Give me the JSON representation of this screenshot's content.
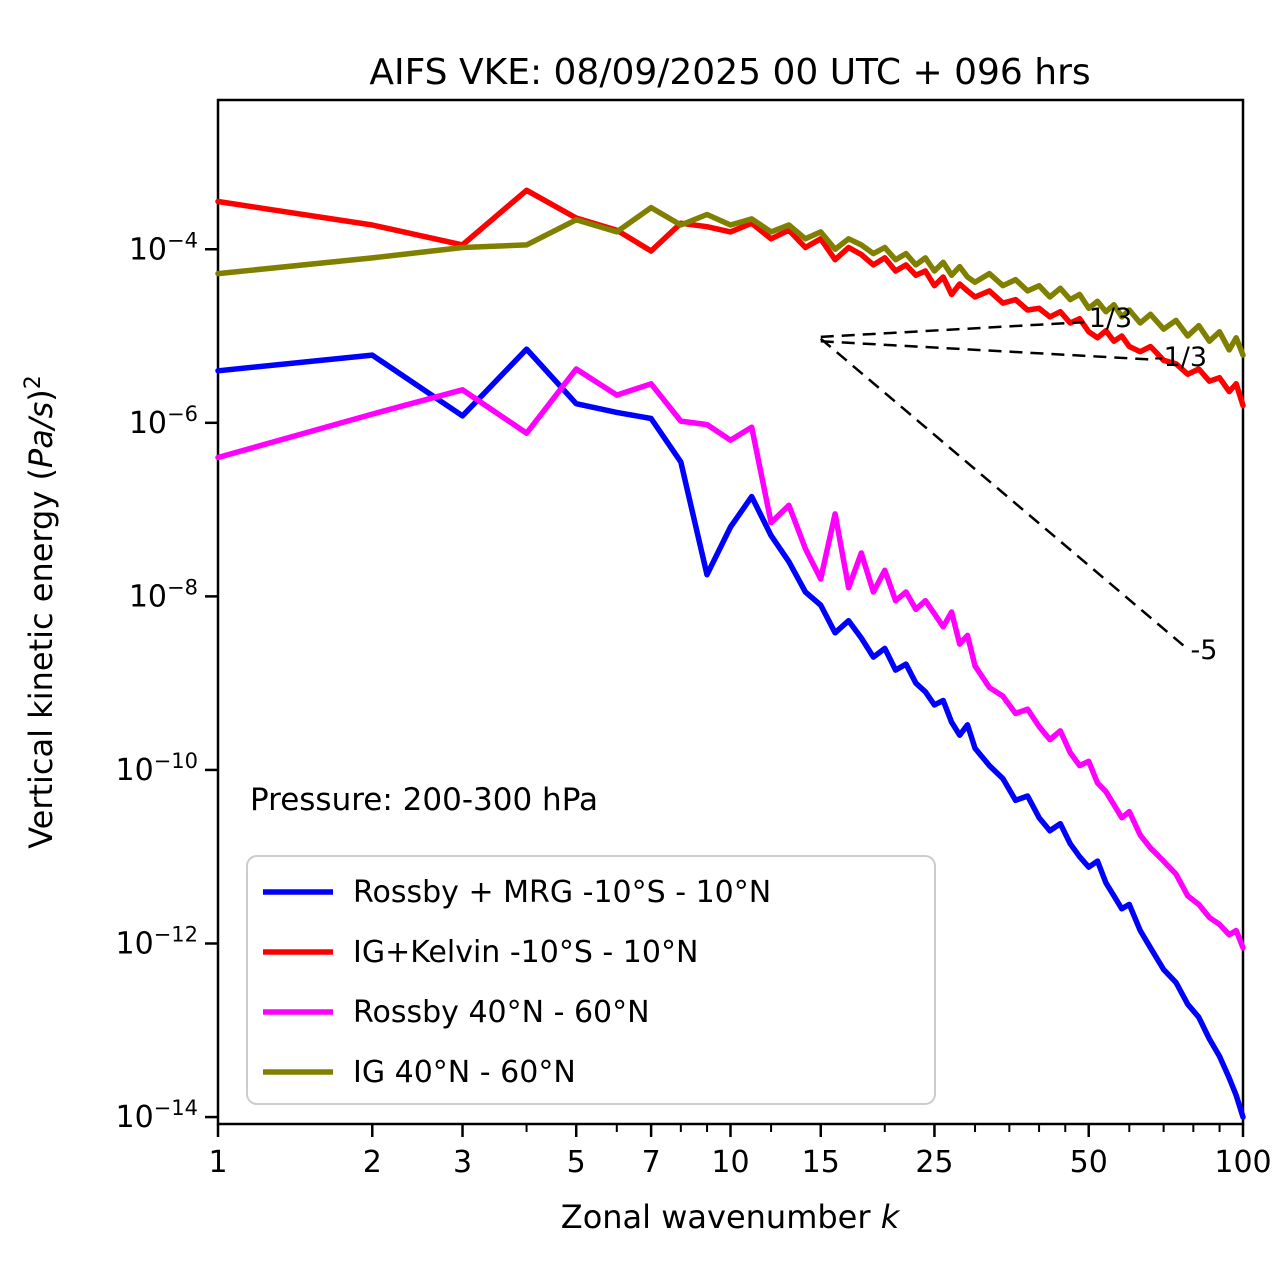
{
  "title": "AIFS VKE: 08/09/2025 00 UTC + 096 hrs",
  "chart_data": {
    "type": "line",
    "title": "AIFS VKE: 08/09/2025 00 UTC + 096 hrs",
    "xlabel_prefix": "Zonal wavenumber ",
    "xlabel_italic": "k",
    "ylabel_prefix": "Vertical kinetic energy (",
    "ylabel_italic": "Pa/s",
    "ylabel_suffix": ")",
    "ylabel_exponent": "2",
    "annotation": "Pressure: 200-300 hPa",
    "x_scale": "log",
    "y_scale": "log",
    "xlim": [
      1,
      100
    ],
    "ylim_log10": [
      -14.08,
      -2.28
    ],
    "grid": false,
    "legend_position": "lower-left",
    "x_ticks": [
      1,
      2,
      3,
      5,
      7,
      10,
      15,
      25,
      50,
      100
    ],
    "x_minor_ticks": [
      4,
      6,
      8,
      9,
      12,
      20,
      30,
      35,
      40,
      45,
      60,
      70,
      80,
      90
    ],
    "y_tick_exponents": [
      -4,
      -6,
      -8,
      -10,
      -12,
      -14
    ],
    "y_tick_mantissa": "10",
    "series": [
      {
        "name": "Rossby + MRG -10°S - 10°N",
        "color": "#0000ff",
        "points_k_log10E": [
          [
            1,
            -5.4
          ],
          [
            2,
            -5.22
          ],
          [
            3,
            -5.92
          ],
          [
            4,
            -5.15
          ],
          [
            5,
            -5.78
          ],
          [
            6,
            -5.88
          ],
          [
            7,
            -5.95
          ],
          [
            8,
            -6.45
          ],
          [
            9,
            -7.75
          ],
          [
            10,
            -7.2
          ],
          [
            11,
            -6.85
          ],
          [
            12,
            -7.3
          ],
          [
            13,
            -7.6
          ],
          [
            14,
            -7.95
          ],
          [
            15,
            -8.1
          ],
          [
            16,
            -8.42
          ],
          [
            17,
            -8.28
          ],
          [
            18,
            -8.48
          ],
          [
            19,
            -8.7
          ],
          [
            20,
            -8.6
          ],
          [
            21,
            -8.85
          ],
          [
            22,
            -8.78
          ],
          [
            23,
            -9.0
          ],
          [
            24,
            -9.1
          ],
          [
            25,
            -9.25
          ],
          [
            26,
            -9.2
          ],
          [
            27,
            -9.45
          ],
          [
            28,
            -9.6
          ],
          [
            29,
            -9.48
          ],
          [
            30,
            -9.75
          ],
          [
            32,
            -9.95
          ],
          [
            34,
            -10.1
          ],
          [
            36,
            -10.35
          ],
          [
            38,
            -10.3
          ],
          [
            40,
            -10.55
          ],
          [
            42,
            -10.7
          ],
          [
            44,
            -10.62
          ],
          [
            46,
            -10.85
          ],
          [
            48,
            -11.0
          ],
          [
            50,
            -11.12
          ],
          [
            52,
            -11.05
          ],
          [
            54,
            -11.3
          ],
          [
            56,
            -11.45
          ],
          [
            58,
            -11.6
          ],
          [
            60,
            -11.55
          ],
          [
            63,
            -11.85
          ],
          [
            66,
            -12.05
          ],
          [
            70,
            -12.3
          ],
          [
            74,
            -12.45
          ],
          [
            78,
            -12.7
          ],
          [
            82,
            -12.85
          ],
          [
            86,
            -13.1
          ],
          [
            90,
            -13.3
          ],
          [
            94,
            -13.55
          ],
          [
            97,
            -13.75
          ],
          [
            100,
            -14.0
          ]
        ]
      },
      {
        "name": "IG+Kelvin -10°S - 10°N",
        "color": "#ff0000",
        "points_k_log10E": [
          [
            1,
            -3.45
          ],
          [
            2,
            -3.72
          ],
          [
            3,
            -3.95
          ],
          [
            4,
            -3.32
          ],
          [
            5,
            -3.64
          ],
          [
            6,
            -3.78
          ],
          [
            7,
            -4.02
          ],
          [
            8,
            -3.7
          ],
          [
            9,
            -3.74
          ],
          [
            10,
            -3.8
          ],
          [
            11,
            -3.7
          ],
          [
            12,
            -3.88
          ],
          [
            13,
            -3.78
          ],
          [
            14,
            -3.98
          ],
          [
            15,
            -3.88
          ],
          [
            16,
            -4.12
          ],
          [
            17,
            -3.98
          ],
          [
            18,
            -4.06
          ],
          [
            19,
            -4.18
          ],
          [
            20,
            -4.1
          ],
          [
            21,
            -4.25
          ],
          [
            22,
            -4.18
          ],
          [
            23,
            -4.3
          ],
          [
            24,
            -4.25
          ],
          [
            25,
            -4.42
          ],
          [
            26,
            -4.32
          ],
          [
            27,
            -4.52
          ],
          [
            28,
            -4.4
          ],
          [
            29,
            -4.48
          ],
          [
            30,
            -4.55
          ],
          [
            32,
            -4.48
          ],
          [
            34,
            -4.62
          ],
          [
            36,
            -4.58
          ],
          [
            38,
            -4.7
          ],
          [
            40,
            -4.68
          ],
          [
            42,
            -4.78
          ],
          [
            44,
            -4.72
          ],
          [
            46,
            -4.85
          ],
          [
            48,
            -4.8
          ],
          [
            50,
            -4.95
          ],
          [
            52,
            -5.02
          ],
          [
            54,
            -4.94
          ],
          [
            56,
            -5.06
          ],
          [
            58,
            -5.0
          ],
          [
            60,
            -5.12
          ],
          [
            63,
            -5.18
          ],
          [
            66,
            -5.12
          ],
          [
            70,
            -5.28
          ],
          [
            74,
            -5.32
          ],
          [
            78,
            -5.44
          ],
          [
            82,
            -5.38
          ],
          [
            86,
            -5.52
          ],
          [
            90,
            -5.48
          ],
          [
            94,
            -5.64
          ],
          [
            97,
            -5.55
          ],
          [
            100,
            -5.8
          ]
        ]
      },
      {
        "name": "Rossby 40°N - 60°N",
        "color": "#ff00ff",
        "points_k_log10E": [
          [
            1,
            -6.4
          ],
          [
            2,
            -5.9
          ],
          [
            3,
            -5.62
          ],
          [
            4,
            -6.12
          ],
          [
            5,
            -5.38
          ],
          [
            6,
            -5.68
          ],
          [
            7,
            -5.55
          ],
          [
            8,
            -5.98
          ],
          [
            9,
            -6.02
          ],
          [
            10,
            -6.2
          ],
          [
            11,
            -6.05
          ],
          [
            12,
            -7.15
          ],
          [
            13,
            -6.95
          ],
          [
            14,
            -7.45
          ],
          [
            15,
            -7.8
          ],
          [
            16,
            -7.05
          ],
          [
            17,
            -7.9
          ],
          [
            18,
            -7.5
          ],
          [
            19,
            -7.95
          ],
          [
            20,
            -7.7
          ],
          [
            21,
            -8.05
          ],
          [
            22,
            -7.95
          ],
          [
            23,
            -8.15
          ],
          [
            24,
            -8.05
          ],
          [
            25,
            -8.2
          ],
          [
            26,
            -8.35
          ],
          [
            27,
            -8.18
          ],
          [
            28,
            -8.55
          ],
          [
            29,
            -8.45
          ],
          [
            30,
            -8.8
          ],
          [
            32,
            -9.05
          ],
          [
            34,
            -9.15
          ],
          [
            36,
            -9.35
          ],
          [
            38,
            -9.3
          ],
          [
            40,
            -9.5
          ],
          [
            42,
            -9.65
          ],
          [
            44,
            -9.55
          ],
          [
            46,
            -9.8
          ],
          [
            48,
            -9.95
          ],
          [
            50,
            -9.9
          ],
          [
            52,
            -10.15
          ],
          [
            54,
            -10.25
          ],
          [
            56,
            -10.4
          ],
          [
            58,
            -10.55
          ],
          [
            60,
            -10.48
          ],
          [
            63,
            -10.75
          ],
          [
            66,
            -10.9
          ],
          [
            70,
            -11.05
          ],
          [
            74,
            -11.2
          ],
          [
            78,
            -11.45
          ],
          [
            82,
            -11.55
          ],
          [
            86,
            -11.7
          ],
          [
            90,
            -11.78
          ],
          [
            94,
            -11.9
          ],
          [
            97,
            -11.85
          ],
          [
            100,
            -12.05
          ]
        ]
      },
      {
        "name": "IG 40°N - 60°N",
        "color": "#808000",
        "points_k_log10E": [
          [
            1,
            -4.28
          ],
          [
            2,
            -4.1
          ],
          [
            3,
            -3.98
          ],
          [
            4,
            -3.95
          ],
          [
            5,
            -3.66
          ],
          [
            6,
            -3.8
          ],
          [
            7,
            -3.52
          ],
          [
            8,
            -3.72
          ],
          [
            9,
            -3.6
          ],
          [
            10,
            -3.72
          ],
          [
            11,
            -3.65
          ],
          [
            12,
            -3.8
          ],
          [
            13,
            -3.72
          ],
          [
            14,
            -3.88
          ],
          [
            15,
            -3.8
          ],
          [
            16,
            -4.0
          ],
          [
            17,
            -3.88
          ],
          [
            18,
            -3.95
          ],
          [
            19,
            -4.05
          ],
          [
            20,
            -3.98
          ],
          [
            21,
            -4.12
          ],
          [
            22,
            -4.05
          ],
          [
            23,
            -4.18
          ],
          [
            24,
            -4.1
          ],
          [
            25,
            -4.25
          ],
          [
            26,
            -4.15
          ],
          [
            27,
            -4.3
          ],
          [
            28,
            -4.2
          ],
          [
            29,
            -4.32
          ],
          [
            30,
            -4.38
          ],
          [
            32,
            -4.28
          ],
          [
            34,
            -4.42
          ],
          [
            36,
            -4.35
          ],
          [
            38,
            -4.48
          ],
          [
            40,
            -4.42
          ],
          [
            42,
            -4.55
          ],
          [
            44,
            -4.45
          ],
          [
            46,
            -4.58
          ],
          [
            48,
            -4.52
          ],
          [
            50,
            -4.68
          ],
          [
            52,
            -4.6
          ],
          [
            54,
            -4.72
          ],
          [
            56,
            -4.64
          ],
          [
            58,
            -4.78
          ],
          [
            60,
            -4.7
          ],
          [
            63,
            -4.85
          ],
          [
            66,
            -4.75
          ],
          [
            70,
            -4.92
          ],
          [
            74,
            -4.82
          ],
          [
            78,
            -5.0
          ],
          [
            82,
            -4.88
          ],
          [
            86,
            -5.06
          ],
          [
            90,
            -4.95
          ],
          [
            94,
            -5.16
          ],
          [
            97,
            -5.02
          ],
          [
            100,
            -5.22
          ]
        ]
      }
    ],
    "reference_lines": [
      {
        "label": "1/3",
        "from_k_log10E": [
          15,
          -5.01
        ],
        "to_k_log10E": [
          49,
          -4.84
        ],
        "label_at_k_log10E": [
          50,
          -4.79
        ]
      },
      {
        "label": "-1/3",
        "from_k_log10E": [
          15,
          -5.06
        ],
        "to_k_log10E": [
          66,
          -5.27
        ],
        "label_at_k_log10E": [
          67,
          -5.24
        ]
      },
      {
        "label": "-5",
        "from_k_log10E": [
          15,
          -5.03
        ],
        "to_k_log10E": [
          77,
          -8.58
        ],
        "label_at_k_log10E": [
          79,
          -8.62
        ]
      }
    ]
  },
  "legend": {
    "items": [
      {
        "label": "Rossby + MRG -10°S - 10°N",
        "color": "#0000ff"
      },
      {
        "label": "IG+Kelvin -10°S - 10°N",
        "color": "#ff0000"
      },
      {
        "label": "Rossby 40°N - 60°N",
        "color": "#ff00ff"
      },
      {
        "label": "IG 40°N - 60°N",
        "color": "#808000"
      }
    ]
  },
  "colors": {
    "axis": "#000000",
    "background": "#ffffff",
    "legend_border": "#cccccc",
    "reference_line": "#000000"
  }
}
